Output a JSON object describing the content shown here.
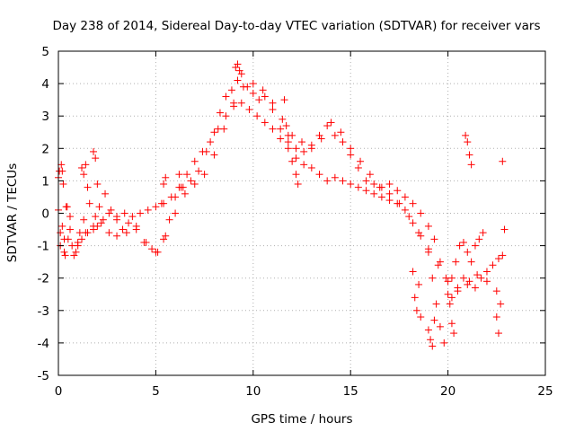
{
  "chart_data": {
    "type": "scatter",
    "title": "Day 238 of 2014, Sidereal Day-to-day VTEC variation (SDTVAR) for receiver vars",
    "xlabel": "GPS time / hours",
    "ylabel": "SDTVAR / TECUs",
    "xlim": [
      0,
      25
    ],
    "ylim": [
      -5,
      5
    ],
    "x_ticks": [
      "0",
      "5",
      "10",
      "15",
      "20",
      "25"
    ],
    "y_ticks": [
      "5",
      "4",
      "3",
      "2",
      "1",
      "0",
      "-1",
      "-2",
      "-3",
      "-4",
      "-5"
    ],
    "grid": true,
    "marker": "+",
    "series": [
      {
        "name": "SDTVAR",
        "color": "#ff0000",
        "x": [
          0.0,
          0.1,
          0.2,
          0.3,
          0.5,
          0.7,
          0.9,
          1.1,
          1.3,
          1.6,
          1.9,
          2.1,
          2.4,
          2.7,
          3.0,
          3.3,
          3.6,
          4.0,
          4.4,
          4.8,
          5.1,
          5.4,
          5.7,
          6.0,
          6.4,
          6.8,
          7.2,
          7.6,
          8.0,
          8.3,
          8.6,
          8.9,
          9.2,
          9.4,
          9.7,
          10.0,
          10.3,
          10.6,
          11.0,
          11.4,
          11.8,
          12.2,
          12.6,
          13.0,
          13.4,
          13.8,
          14.2,
          14.6,
          15.0,
          15.4,
          15.8,
          16.2,
          16.6,
          17.0,
          17.4,
          17.8,
          18.2,
          18.6,
          19.0,
          19.3,
          19.6,
          19.9,
          20.2,
          20.5,
          20.8,
          21.1,
          21.4,
          21.7,
          22.0,
          22.3,
          22.6,
          22.8
        ],
        "y": [
          1.1,
          -0.6,
          1.3,
          -1.2,
          -0.8,
          -1.0,
          -1.2,
          -0.6,
          -0.2,
          0.3,
          -0.1,
          0.2,
          0.6,
          0.1,
          -0.2,
          -0.5,
          -0.3,
          -0.4,
          -0.9,
          -1.1,
          -1.2,
          -0.8,
          -0.2,
          0.5,
          0.8,
          1.0,
          1.3,
          1.9,
          2.5,
          3.1,
          3.6,
          3.8,
          4.1,
          4.3,
          3.9,
          3.7,
          3.5,
          3.6,
          3.2,
          2.6,
          2.2,
          2.0,
          1.9,
          2.0,
          2.4,
          2.7,
          2.4,
          2.2,
          1.8,
          1.4,
          1.0,
          0.9,
          0.8,
          0.9,
          0.7,
          0.5,
          0.3,
          0.0,
          -0.4,
          -0.8,
          -1.5,
          -2.0,
          -2.6,
          -2.3,
          -2.0,
          -2.1,
          -2.3,
          -2.0,
          -1.8,
          -1.6,
          -1.4,
          -1.3
        ]
      },
      {
        "name": "SDTVAR",
        "color": "#ff0000",
        "x": [
          0.0,
          0.2,
          0.4,
          0.6,
          0.8,
          1.0,
          1.2,
          1.5,
          1.8,
          2.0,
          2.3,
          2.6,
          3.0,
          3.4,
          3.8,
          4.2,
          4.6,
          5.0,
          5.4,
          5.8,
          6.2,
          6.6,
          7.0,
          7.4,
          7.8,
          8.2,
          8.6,
          9.0,
          9.4,
          9.8,
          10.2,
          10.6,
          11.0,
          11.4,
          11.8,
          12.2,
          12.6,
          13.0,
          13.4,
          13.8,
          14.2,
          14.6,
          15.0,
          15.4,
          15.8,
          16.2,
          16.6,
          17.0,
          17.4,
          17.8,
          18.2,
          18.6,
          19.0,
          19.2,
          19.4,
          19.6,
          19.8,
          20.0,
          20.2,
          20.4,
          20.6,
          20.8,
          21.0,
          21.2,
          21.4,
          21.6,
          21.8
        ],
        "y": [
          0.1,
          -0.4,
          0.2,
          -0.1,
          -1.3,
          -1.0,
          -0.8,
          -0.6,
          -0.5,
          -0.4,
          -0.2,
          0.0,
          -0.1,
          0.0,
          -0.1,
          0.0,
          0.1,
          0.2,
          0.3,
          0.5,
          0.8,
          1.2,
          1.6,
          1.9,
          2.2,
          2.6,
          3.0,
          3.3,
          3.4,
          3.2,
          3.0,
          2.8,
          2.6,
          2.3,
          2.0,
          1.7,
          1.5,
          1.4,
          1.2,
          1.0,
          1.1,
          1.0,
          0.9,
          0.8,
          0.7,
          0.6,
          0.5,
          0.4,
          0.3,
          0.1,
          -0.3,
          -0.7,
          -1.2,
          -2.0,
          -2.8,
          -3.5,
          -4.0,
          -2.5,
          -2.0,
          -1.5,
          -1.0,
          -0.9,
          -1.2,
          -1.5,
          -1.0,
          -0.8,
          -0.6
        ]
      },
      {
        "name": "SDTVAR",
        "color": "#ff0000",
        "x": [
          0.1,
          0.3,
          0.6,
          1.0,
          1.4,
          1.8,
          2.2,
          2.6,
          3.0,
          3.5,
          4.0,
          4.5,
          5.0,
          5.5,
          6.0,
          6.5,
          7.0,
          7.5,
          8.0,
          8.5,
          9.0,
          9.5,
          10.0,
          10.5,
          11.0,
          11.5,
          12.0,
          12.5,
          13.0,
          13.5,
          14.0,
          14.5,
          15.0,
          15.5,
          16.0,
          16.5,
          17.0,
          17.5,
          18.0,
          18.5,
          19.0,
          19.5,
          20.0,
          20.5,
          21.0,
          21.5,
          22.0,
          22.5
        ],
        "y": [
          -1.0,
          -0.8,
          -0.5,
          -0.9,
          -0.6,
          -0.4,
          -0.3,
          -0.6,
          -0.7,
          -0.6,
          -0.5,
          -0.9,
          -1.2,
          -0.7,
          0.0,
          0.6,
          0.9,
          1.2,
          1.8,
          2.6,
          3.4,
          3.9,
          4.0,
          3.8,
          3.4,
          2.9,
          2.4,
          2.2,
          2.1,
          2.3,
          2.8,
          2.5,
          2.0,
          1.6,
          1.2,
          0.8,
          0.6,
          0.3,
          -0.1,
          -0.6,
          -1.1,
          -1.6,
          -2.1,
          -2.4,
          -2.2,
          -1.9,
          -2.1,
          -2.4
        ]
      },
      {
        "name": "SDTVAR",
        "color": "#ff0000",
        "x": [
          0.05,
          0.15,
          0.25,
          0.35,
          0.45,
          1.2,
          1.3,
          1.4,
          1.5,
          1.8,
          1.9,
          2.0,
          5.3,
          5.4,
          5.5,
          6.2,
          6.3,
          9.1,
          9.2,
          9.3,
          11.6,
          11.7,
          11.8,
          12.0,
          12.2,
          12.3,
          18.2,
          18.3,
          18.4,
          18.5,
          18.6,
          19.0,
          19.1,
          19.2,
          19.3,
          20.1,
          20.2,
          20.3,
          20.9,
          21.0,
          21.1,
          21.2,
          22.5,
          22.6,
          22.7,
          22.8,
          22.9
        ],
        "y": [
          1.3,
          1.5,
          0.9,
          -1.3,
          0.2,
          1.4,
          1.2,
          1.5,
          0.8,
          1.9,
          1.7,
          0.9,
          0.3,
          0.9,
          1.1,
          1.2,
          0.8,
          4.5,
          4.6,
          4.4,
          3.5,
          2.7,
          2.4,
          1.6,
          1.2,
          0.9,
          -1.8,
          -2.6,
          -3.0,
          -2.2,
          -3.2,
          -3.6,
          -3.9,
          -4.1,
          -3.3,
          -2.8,
          -3.4,
          -3.7,
          2.4,
          2.2,
          1.8,
          1.5,
          -3.2,
          -3.7,
          -2.8,
          1.6,
          -0.5
        ]
      }
    ]
  }
}
